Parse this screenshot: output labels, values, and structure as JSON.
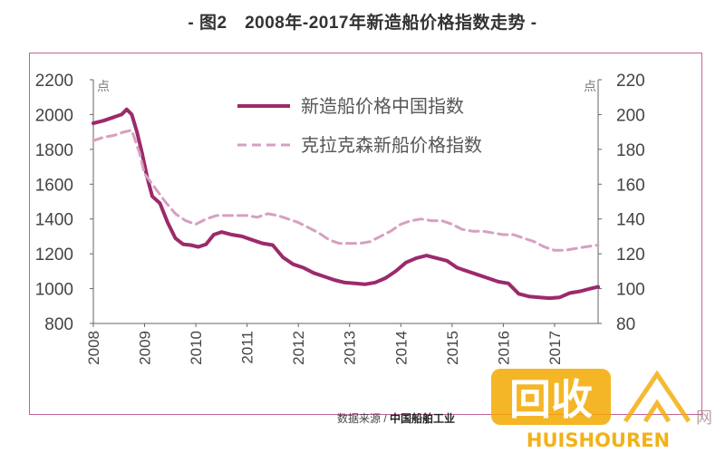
{
  "page": {
    "title": "- 图2　2008年-2017年新造船价格指数走势 -",
    "source_prefix": "数据来源 / ",
    "source_name": "中国船舶工业"
  },
  "colors": {
    "frame": "#c0639a",
    "series_1": "#9c2a6b",
    "series_2": "#d6a0c0",
    "watermark": "#f2a900"
  },
  "watermark": {
    "logo_text": "回收",
    "brand_text": "HUISHOUREN",
    "site_text": "网"
  },
  "chart_data": {
    "type": "line",
    "title": "2008年-2017年新造船价格指数走势",
    "xlabel": "",
    "left_unit": "点",
    "right_unit": "点",
    "xlim": [
      2008.0,
      2017.85
    ],
    "ylim_left": [
      800,
      2200
    ],
    "ylim_right": [
      80,
      220
    ],
    "x_tick_labels": [
      "2008",
      "2009",
      "2010",
      "2011",
      "2012",
      "2013",
      "2014",
      "2015",
      "2016",
      "2017"
    ],
    "y_left_ticks": [
      800,
      1000,
      1200,
      1400,
      1600,
      1800,
      2000,
      2200
    ],
    "y_right_ticks": [
      80,
      100,
      120,
      140,
      160,
      180,
      200,
      220
    ],
    "legend_position": "top-center",
    "series": [
      {
        "name": "新造船价格中国指数",
        "axis": "left",
        "style": "solid",
        "points": [
          [
            2008.0,
            1950
          ],
          [
            2008.2,
            1965
          ],
          [
            2008.4,
            1985
          ],
          [
            2008.55,
            2000
          ],
          [
            2008.65,
            2030
          ],
          [
            2008.75,
            2000
          ],
          [
            2008.85,
            1900
          ],
          [
            2008.95,
            1780
          ],
          [
            2009.05,
            1640
          ],
          [
            2009.15,
            1530
          ],
          [
            2009.3,
            1490
          ],
          [
            2009.45,
            1380
          ],
          [
            2009.6,
            1290
          ],
          [
            2009.75,
            1255
          ],
          [
            2009.9,
            1250
          ],
          [
            2010.05,
            1240
          ],
          [
            2010.2,
            1255
          ],
          [
            2010.35,
            1310
          ],
          [
            2010.5,
            1325
          ],
          [
            2010.7,
            1310
          ],
          [
            2010.9,
            1300
          ],
          [
            2011.1,
            1280
          ],
          [
            2011.3,
            1260
          ],
          [
            2011.5,
            1250
          ],
          [
            2011.7,
            1180
          ],
          [
            2011.9,
            1140
          ],
          [
            2012.1,
            1120
          ],
          [
            2012.3,
            1090
          ],
          [
            2012.5,
            1070
          ],
          [
            2012.7,
            1050
          ],
          [
            2012.9,
            1035
          ],
          [
            2013.1,
            1030
          ],
          [
            2013.3,
            1025
          ],
          [
            2013.5,
            1035
          ],
          [
            2013.7,
            1060
          ],
          [
            2013.9,
            1100
          ],
          [
            2014.1,
            1150
          ],
          [
            2014.3,
            1175
          ],
          [
            2014.5,
            1190
          ],
          [
            2014.7,
            1175
          ],
          [
            2014.9,
            1160
          ],
          [
            2015.1,
            1120
          ],
          [
            2015.3,
            1100
          ],
          [
            2015.5,
            1080
          ],
          [
            2015.7,
            1060
          ],
          [
            2015.9,
            1040
          ],
          [
            2016.1,
            1030
          ],
          [
            2016.3,
            970
          ],
          [
            2016.5,
            955
          ],
          [
            2016.7,
            950
          ],
          [
            2016.9,
            945
          ],
          [
            2017.1,
            950
          ],
          [
            2017.3,
            975
          ],
          [
            2017.5,
            985
          ],
          [
            2017.7,
            1000
          ],
          [
            2017.85,
            1010
          ]
        ]
      },
      {
        "name": "克拉克森新船价格指数",
        "axis": "right",
        "style": "dashed",
        "points": [
          [
            2008.0,
            185
          ],
          [
            2008.2,
            187
          ],
          [
            2008.4,
            188
          ],
          [
            2008.6,
            190
          ],
          [
            2008.75,
            191
          ],
          [
            2008.9,
            178
          ],
          [
            2009.0,
            166
          ],
          [
            2009.2,
            158
          ],
          [
            2009.4,
            150
          ],
          [
            2009.6,
            143
          ],
          [
            2009.8,
            139
          ],
          [
            2010.0,
            137
          ],
          [
            2010.2,
            140
          ],
          [
            2010.4,
            142
          ],
          [
            2010.6,
            142
          ],
          [
            2010.8,
            142
          ],
          [
            2011.0,
            142
          ],
          [
            2011.2,
            141
          ],
          [
            2011.4,
            143
          ],
          [
            2011.6,
            142
          ],
          [
            2011.8,
            140
          ],
          [
            2012.0,
            138
          ],
          [
            2012.2,
            135
          ],
          [
            2012.4,
            132
          ],
          [
            2012.6,
            128
          ],
          [
            2012.8,
            126
          ],
          [
            2013.0,
            126
          ],
          [
            2013.2,
            126
          ],
          [
            2013.4,
            127
          ],
          [
            2013.6,
            130
          ],
          [
            2013.8,
            133
          ],
          [
            2014.0,
            137
          ],
          [
            2014.2,
            139
          ],
          [
            2014.4,
            140
          ],
          [
            2014.6,
            139
          ],
          [
            2014.8,
            139
          ],
          [
            2015.0,
            137
          ],
          [
            2015.2,
            134
          ],
          [
            2015.4,
            133
          ],
          [
            2015.6,
            133
          ],
          [
            2015.8,
            132
          ],
          [
            2016.0,
            131
          ],
          [
            2016.2,
            131
          ],
          [
            2016.4,
            129
          ],
          [
            2016.6,
            127
          ],
          [
            2016.8,
            124
          ],
          [
            2017.0,
            122
          ],
          [
            2017.2,
            122
          ],
          [
            2017.4,
            123
          ],
          [
            2017.6,
            124
          ],
          [
            2017.85,
            125
          ]
        ]
      }
    ]
  }
}
